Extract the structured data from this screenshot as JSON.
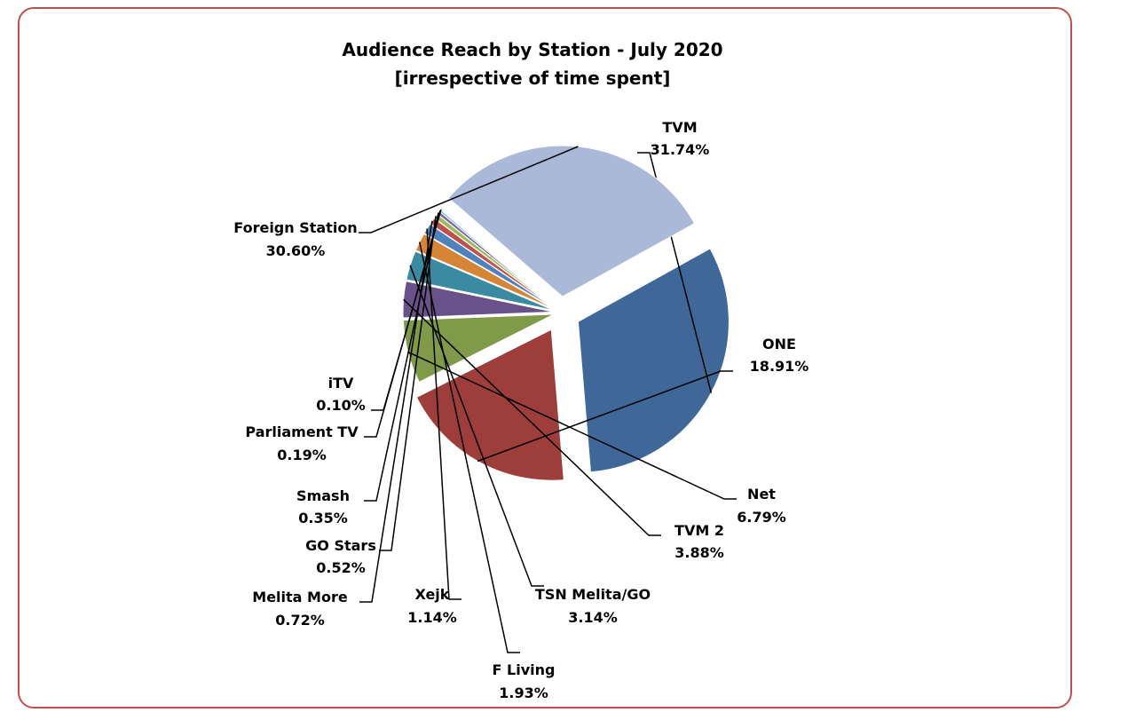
{
  "chart_data": {
    "type": "pie",
    "title": "Audience Reach by Station - July 2020",
    "subtitle": "[irrespective of time spent]",
    "slices": [
      {
        "name": "TVM",
        "value": 31.74,
        "label": "31.74%",
        "color": "#3f6899",
        "exploded": true
      },
      {
        "name": "ONE",
        "value": 18.91,
        "label": "18.91%",
        "color": "#9e3e3b",
        "exploded": true
      },
      {
        "name": "Net",
        "value": 6.79,
        "label": "6.79%",
        "color": "#7f9a48"
      },
      {
        "name": "TVM 2",
        "value": 3.88,
        "label": "3.88%",
        "color": "#69518a"
      },
      {
        "name": "TSN Melita/GO",
        "value": 3.14,
        "label": "3.14%",
        "color": "#3a8ba2"
      },
      {
        "name": "F Living",
        "value": 1.93,
        "label": "1.93%",
        "color": "#d68435"
      },
      {
        "name": "Xejk",
        "value": 1.14,
        "label": "1.14%",
        "color": "#4f81bd"
      },
      {
        "name": "Melita More",
        "value": 0.72,
        "label": "0.72%",
        "color": "#c0504d"
      },
      {
        "name": "GO Stars",
        "value": 0.52,
        "label": "0.52%",
        "color": "#9bbb59"
      },
      {
        "name": "Smash",
        "value": 0.35,
        "label": "0.35%",
        "color": "#8064a2"
      },
      {
        "name": "Parliament TV",
        "value": 0.19,
        "label": "0.19%",
        "color": "#4bacc6"
      },
      {
        "name": "iTV",
        "value": 0.1,
        "label": "0.10%",
        "color": "#f79646"
      },
      {
        "name": "Foreign Station",
        "value": 30.6,
        "label": "30.60%",
        "color": "#aab9d8",
        "exploded": true
      }
    ]
  }
}
